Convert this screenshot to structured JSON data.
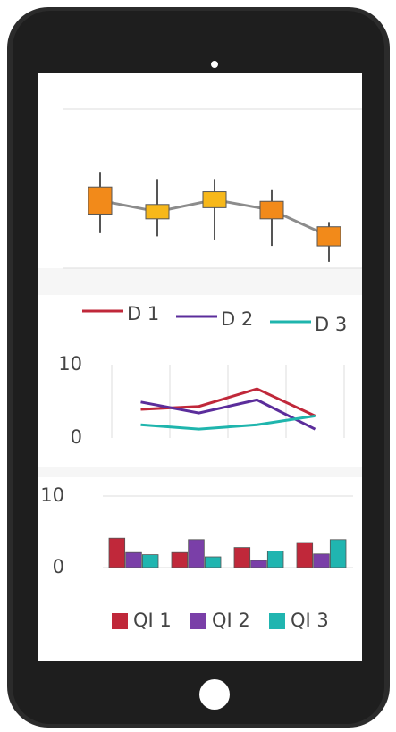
{
  "chart_data": [
    {
      "type": "candlestick",
      "categories": [
        null,
        null,
        null,
        null,
        null
      ],
      "open": [
        3.4,
        3.1,
        3.8,
        3.1,
        1.4
      ],
      "close": [
        5.1,
        4.0,
        4.8,
        4.2,
        2.6
      ],
      "high": [
        6.0,
        5.6,
        5.6,
        4.9,
        2.9
      ],
      "low": [
        2.2,
        2.0,
        1.8,
        1.4,
        0.4
      ],
      "colors": [
        "#f28a1a",
        "#f7b81a",
        "#f7b81a",
        "#f28a1a",
        "#f28a1a"
      ],
      "line_color": "#8c8c8c",
      "ylim": [
        0,
        10
      ],
      "grid": true
    },
    {
      "type": "line",
      "categories": [
        null,
        null,
        null,
        null
      ],
      "series": [
        {
          "name": "D 1",
          "color": "#c0283a",
          "values": [
            3.9,
            4.3,
            6.7,
            3.0
          ]
        },
        {
          "name": "D 2",
          "color": "#5b2d9b",
          "values": [
            4.9,
            3.4,
            5.2,
            1.2
          ]
        },
        {
          "name": "D 3",
          "color": "#1fb5ad",
          "values": [
            1.8,
            1.2,
            1.8,
            3.0
          ]
        }
      ],
      "ylim": [
        0,
        10
      ],
      "yticks": [
        0,
        10
      ],
      "grid": "x",
      "legend": "top"
    },
    {
      "type": "bar",
      "categories": [
        null,
        null,
        null,
        null
      ],
      "series": [
        {
          "name": "QI 1",
          "color": "#c0283a",
          "values": [
            4.1,
            2.1,
            2.8,
            3.5
          ]
        },
        {
          "name": "QI 2",
          "color": "#7a3fa8",
          "values": [
            2.1,
            3.9,
            1.0,
            1.9
          ]
        },
        {
          "name": "QI 3",
          "color": "#20b5b0",
          "values": [
            1.8,
            1.5,
            2.3,
            3.9
          ]
        }
      ],
      "ylim": [
        0,
        10
      ],
      "yticks": [
        0,
        10
      ],
      "grid": "y",
      "legend": "bottom"
    }
  ]
}
